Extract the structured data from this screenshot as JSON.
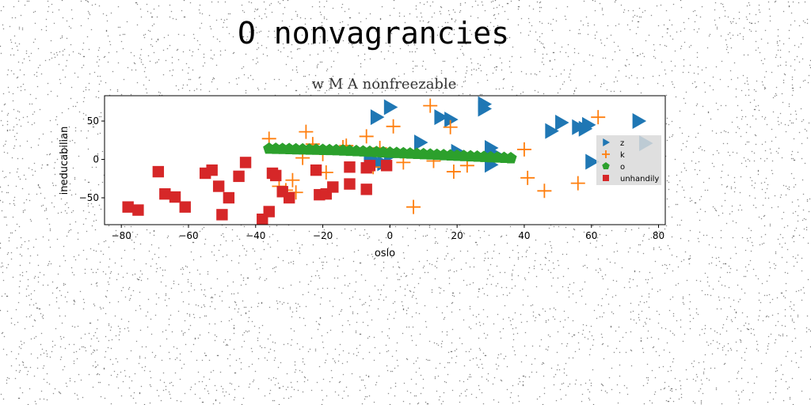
{
  "figure": {
    "suptitle": "O nonvagrancies"
  },
  "chart_data": {
    "type": "scatter",
    "title": "w M A nonfreezable",
    "xlabel": "oslo",
    "ylabel": "ineducabilian",
    "xlim": [
      -85,
      82
    ],
    "ylim": [
      -85,
      83
    ],
    "xticks": [
      -80,
      -60,
      -40,
      -20,
      0,
      20,
      40,
      60,
      80
    ],
    "yticks": [
      -50,
      0,
      50
    ],
    "grid": false,
    "legend_position": "right",
    "series": [
      {
        "name": "z",
        "marker": "triangle-right",
        "color": "#1f77b4",
        "points": [
          [
            -6,
            2
          ],
          [
            -4,
            -4
          ],
          [
            -2,
            -5
          ],
          [
            0,
            5
          ],
          [
            -4,
            55
          ],
          [
            0,
            68
          ],
          [
            9,
            22
          ],
          [
            15,
            55
          ],
          [
            18,
            52
          ],
          [
            20,
            10
          ],
          [
            28,
            72
          ],
          [
            28,
            66
          ],
          [
            30,
            15
          ],
          [
            30,
            -7
          ],
          [
            32,
            5
          ],
          [
            48,
            37
          ],
          [
            51,
            48
          ],
          [
            56,
            42
          ],
          [
            58,
            40
          ],
          [
            59,
            45
          ],
          [
            60,
            -3
          ],
          [
            74,
            50
          ],
          [
            76,
            21
          ]
        ]
      },
      {
        "name": "k",
        "marker": "plus",
        "color": "#ff7f0e",
        "points": [
          [
            -36,
            27
          ],
          [
            -33,
            -35
          ],
          [
            -31,
            -40
          ],
          [
            -29,
            -27
          ],
          [
            -28,
            -43
          ],
          [
            -26,
            2
          ],
          [
            -25,
            36
          ],
          [
            -23,
            20
          ],
          [
            -20,
            7
          ],
          [
            -19,
            -17
          ],
          [
            -14,
            16
          ],
          [
            -13,
            18
          ],
          [
            -7,
            30
          ],
          [
            -5,
            -10
          ],
          [
            -3,
            15
          ],
          [
            1,
            43
          ],
          [
            4,
            -4
          ],
          [
            7,
            -62
          ],
          [
            12,
            70
          ],
          [
            13,
            -2
          ],
          [
            18,
            42
          ],
          [
            19,
            -16
          ],
          [
            23,
            -8
          ],
          [
            40,
            13
          ],
          [
            41,
            -24
          ],
          [
            46,
            -41
          ],
          [
            56,
            -31
          ],
          [
            62,
            55
          ]
        ]
      },
      {
        "name": "o",
        "marker": "pentagon",
        "color": "#2ca02c",
        "points": [
          [
            -36,
            14
          ],
          [
            -34,
            13.8
          ],
          [
            -32,
            13.6
          ],
          [
            -30,
            13.4
          ],
          [
            -28,
            13.2
          ],
          [
            -26,
            13
          ],
          [
            -24,
            12.8
          ],
          [
            -22,
            12.6
          ],
          [
            -20,
            12.4
          ],
          [
            -18,
            12.2
          ],
          [
            -16,
            12
          ],
          [
            -14,
            11.6
          ],
          [
            -12,
            11.2
          ],
          [
            -10,
            10.8
          ],
          [
            -8,
            10.4
          ],
          [
            -6,
            10
          ],
          [
            -4,
            9.6
          ],
          [
            -2,
            9.2
          ],
          [
            0,
            8.8
          ],
          [
            2,
            8.4
          ],
          [
            4,
            8
          ],
          [
            6,
            7.6
          ],
          [
            8,
            7.2
          ],
          [
            10,
            6.8
          ],
          [
            12,
            6.4
          ],
          [
            14,
            6
          ],
          [
            16,
            5.6
          ],
          [
            18,
            5.2
          ],
          [
            20,
            4.8
          ],
          [
            22,
            4.4
          ],
          [
            24,
            4
          ],
          [
            26,
            3.6
          ],
          [
            28,
            3.2
          ],
          [
            30,
            2.8
          ],
          [
            32,
            2.4
          ],
          [
            34,
            2
          ],
          [
            36,
            1.6
          ]
        ]
      },
      {
        "name": "unhandily",
        "marker": "square",
        "color": "#d62728",
        "points": [
          [
            -78,
            -62
          ],
          [
            -75,
            -66
          ],
          [
            -69,
            -16
          ],
          [
            -67,
            -45
          ],
          [
            -64,
            -49
          ],
          [
            -61,
            -62
          ],
          [
            -55,
            -18
          ],
          [
            -53,
            -14
          ],
          [
            -51,
            -35
          ],
          [
            -50,
            -72
          ],
          [
            -48,
            -50
          ],
          [
            -45,
            -22
          ],
          [
            -43,
            -4
          ],
          [
            -38,
            -78
          ],
          [
            -36,
            -68
          ],
          [
            -35,
            -18
          ],
          [
            -34,
            -21
          ],
          [
            -32,
            -42
          ],
          [
            -30,
            -50
          ],
          [
            -22,
            -14
          ],
          [
            -21,
            -46
          ],
          [
            -19,
            -45
          ],
          [
            -17,
            -36
          ],
          [
            -12,
            -32
          ],
          [
            -12,
            -10
          ],
          [
            -7,
            -39
          ],
          [
            -7,
            -11
          ],
          [
            -6,
            -8
          ],
          [
            -1,
            -8
          ]
        ]
      }
    ]
  }
}
